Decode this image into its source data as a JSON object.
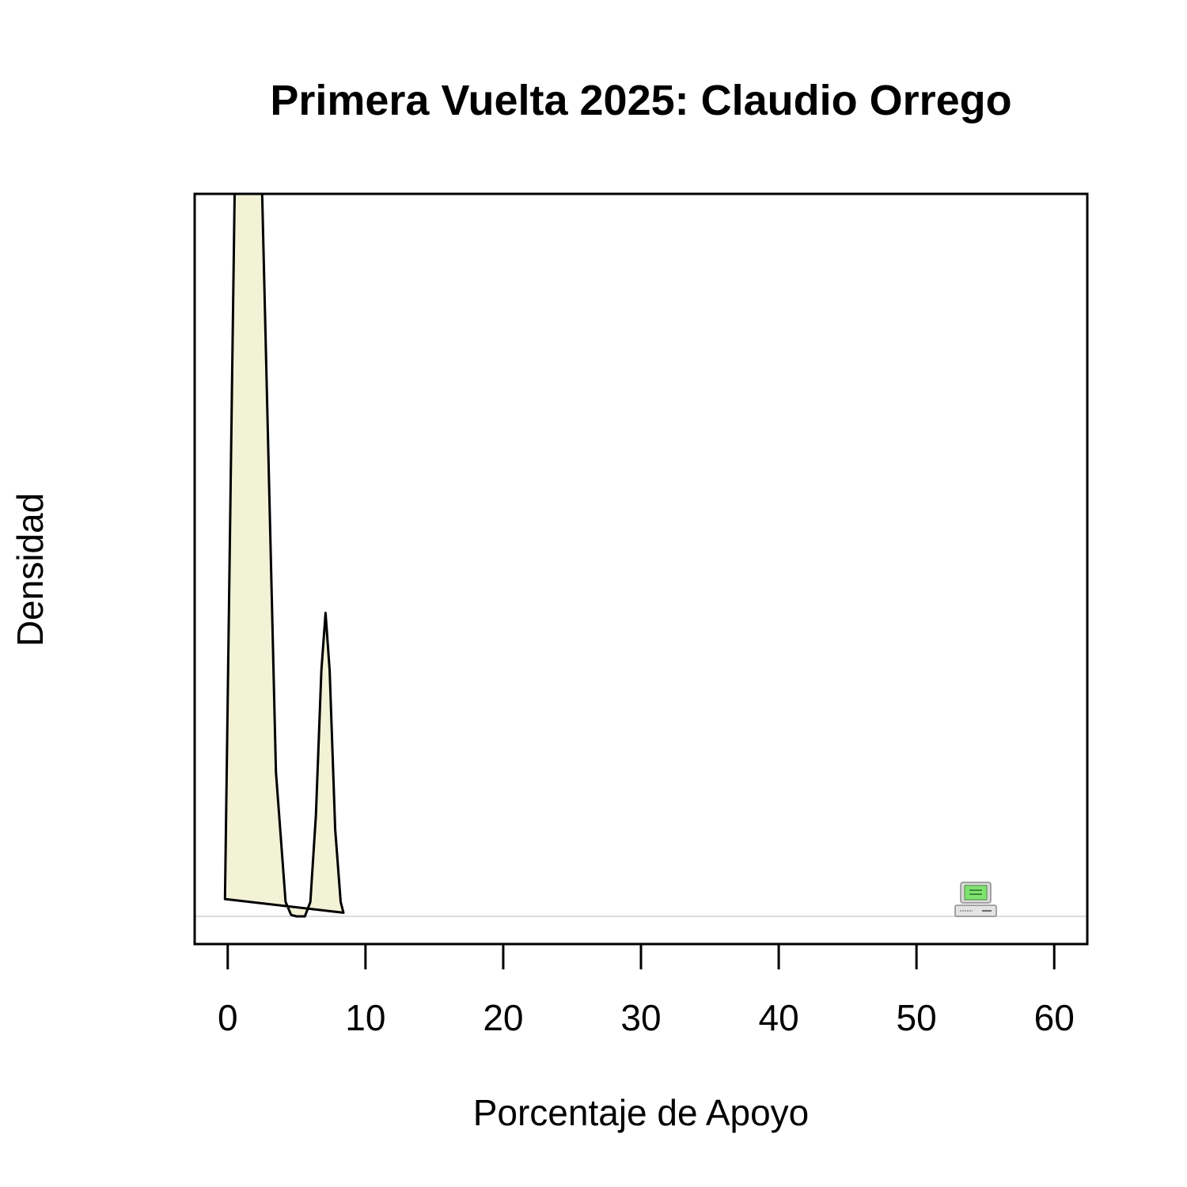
{
  "chart_data": {
    "type": "area",
    "title": "Primera Vuelta 2025: Claudio Orrego",
    "xlabel": "Porcentaje de Apoyo",
    "ylabel": "Densidad",
    "xlim": [
      -2.4,
      62.4
    ],
    "xticks": [
      0,
      10,
      20,
      30,
      40,
      50,
      60
    ],
    "y_ticks_shown": false,
    "grid": false,
    "baseline_color": "#d0d0d0",
    "fill_color": "#f2f2d6",
    "line_color": "#000000",
    "series": [
      {
        "x": [
          -0.2,
          0.5,
          2.5,
          3.5,
          4.2,
          4.6,
          5.0,
          5.6,
          6.0,
          6.4,
          6.8,
          7.1,
          7.4,
          7.8,
          8.2,
          8.4
        ],
        "y": [
          0.024,
          1.0,
          1.0,
          0.2,
          0.02,
          0.002,
          0.0,
          0.0,
          0.02,
          0.14,
          0.34,
          0.42,
          0.34,
          0.12,
          0.02,
          0.005
        ]
      }
    ],
    "ylim": [
      -0.04,
      1.0
    ],
    "icon": "computer-icon",
    "icon_x": 54.3
  }
}
